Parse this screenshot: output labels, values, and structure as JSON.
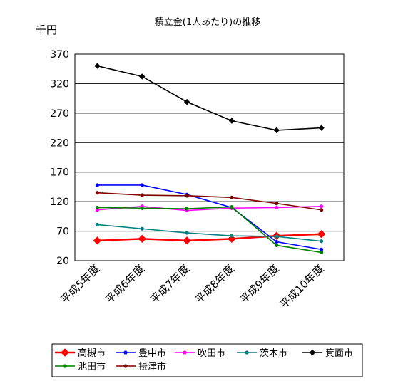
{
  "chart_data": {
    "type": "line",
    "title": "積立金(1人あたり)の推移",
    "unit_label": "千円",
    "categories": [
      "平成5年度",
      "平成6年度",
      "平成7年度",
      "平成8年度",
      "平成9年度",
      "平成10年度"
    ],
    "ylim": [
      20,
      370
    ],
    "yticks": [
      "20",
      "70",
      "120",
      "170",
      "220",
      "270",
      "320",
      "370"
    ],
    "grid": true,
    "legend_position": "bottom",
    "series": [
      {
        "name": "高槻市",
        "color": "#ff0000",
        "marker": "diamond",
        "values": [
          54,
          57,
          54,
          57,
          62,
          65
        ]
      },
      {
        "name": "豊中市",
        "color": "#0000ff",
        "marker": "circle",
        "values": [
          148,
          148,
          132,
          110,
          52,
          39
        ]
      },
      {
        "name": "吹田市",
        "color": "#ff00ff",
        "marker": "circle",
        "values": [
          106,
          112,
          105,
          109,
          110,
          112
        ]
      },
      {
        "name": "茨木市",
        "color": "#008080",
        "marker": "circle",
        "values": [
          81,
          74,
          67,
          62,
          61,
          53
        ]
      },
      {
        "name": "箕面市",
        "color": "#000000",
        "marker": "diamond",
        "values": [
          350,
          332,
          289,
          257,
          241,
          245
        ]
      },
      {
        "name": "池田市",
        "color": "#008000",
        "marker": "circle",
        "values": [
          110,
          109,
          108,
          111,
          46,
          34
        ]
      },
      {
        "name": "摂津市",
        "color": "#800000",
        "marker": "circle",
        "values": [
          135,
          131,
          130,
          127,
          117,
          106
        ]
      }
    ]
  }
}
